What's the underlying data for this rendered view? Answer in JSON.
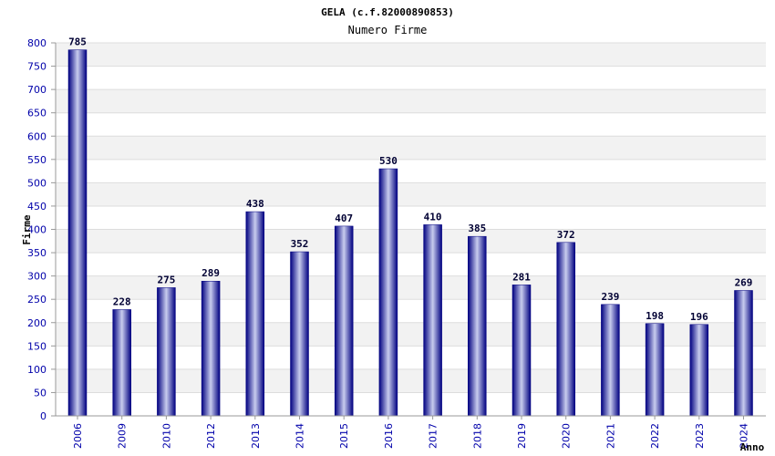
{
  "chart_data": {
    "type": "bar",
    "title": "GELA (c.f.82000890853)",
    "subtitle": "Numero Firme",
    "xlabel": "Anno",
    "ylabel": "Firme",
    "categories": [
      "2006",
      "2009",
      "2010",
      "2012",
      "2013",
      "2014",
      "2015",
      "2016",
      "2017",
      "2018",
      "2019",
      "2020",
      "2021",
      "2022",
      "2023",
      "2024"
    ],
    "values": [
      785,
      228,
      275,
      289,
      438,
      352,
      407,
      530,
      410,
      385,
      281,
      372,
      239,
      198,
      196,
      269
    ],
    "ylim": [
      0,
      800
    ],
    "ytick_step": 50,
    "grid": "horizontal bands",
    "colors": {
      "bar_dark": "#000080",
      "bar_light": "#c8ccee",
      "band": "#f2f2f2",
      "grid": "#dddddd",
      "tick_text": "#0000aa"
    }
  }
}
